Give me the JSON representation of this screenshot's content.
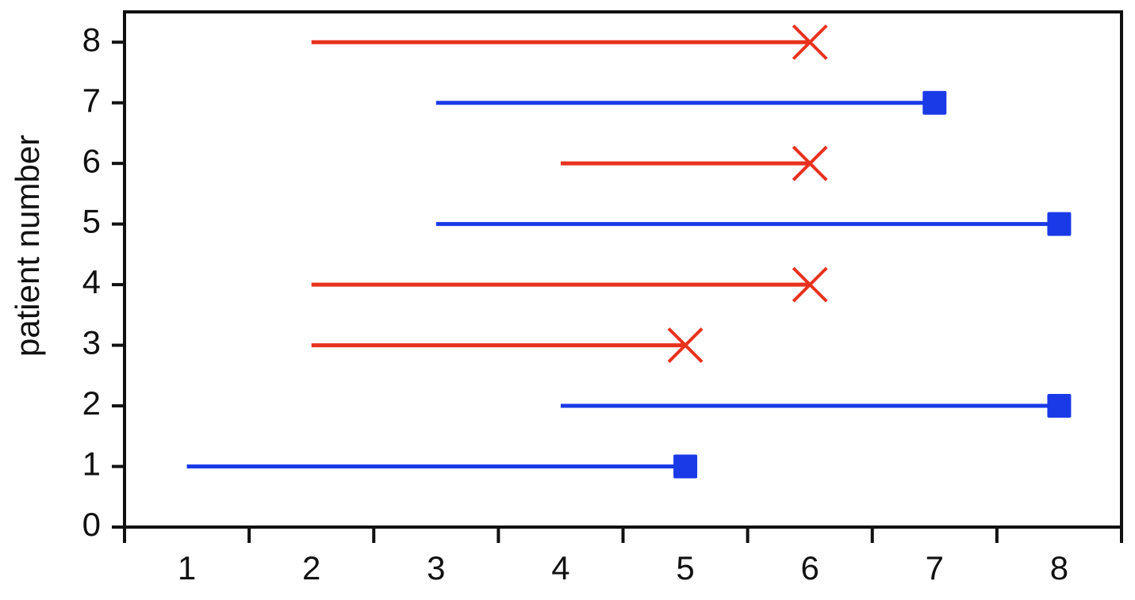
{
  "chart_data": {
    "type": "swimmer",
    "ylabel": "patient number",
    "xlim": [
      0.5,
      8.5
    ],
    "xticks": [
      1,
      2,
      3,
      4,
      5,
      6,
      7,
      8
    ],
    "xtick_marks": [
      0.5,
      1.5,
      2.5,
      3.5,
      4.5,
      5.5,
      6.5,
      7.5,
      8.5
    ],
    "ylim": [
      0,
      8.5
    ],
    "yticks": [
      0,
      1,
      2,
      3,
      4,
      5,
      6,
      7,
      8
    ],
    "series": [
      {
        "color": "#e8321e",
        "marker": "x",
        "y": [
          3,
          4,
          6,
          8
        ],
        "start": [
          2,
          2,
          4,
          2
        ],
        "end": [
          5,
          6,
          6,
          6
        ]
      },
      {
        "color": "#1a3ae8",
        "marker": "square",
        "y": [
          1,
          2,
          5,
          7
        ],
        "start": [
          1,
          4,
          3,
          3
        ],
        "end": [
          5,
          8,
          8,
          7
        ]
      }
    ]
  }
}
